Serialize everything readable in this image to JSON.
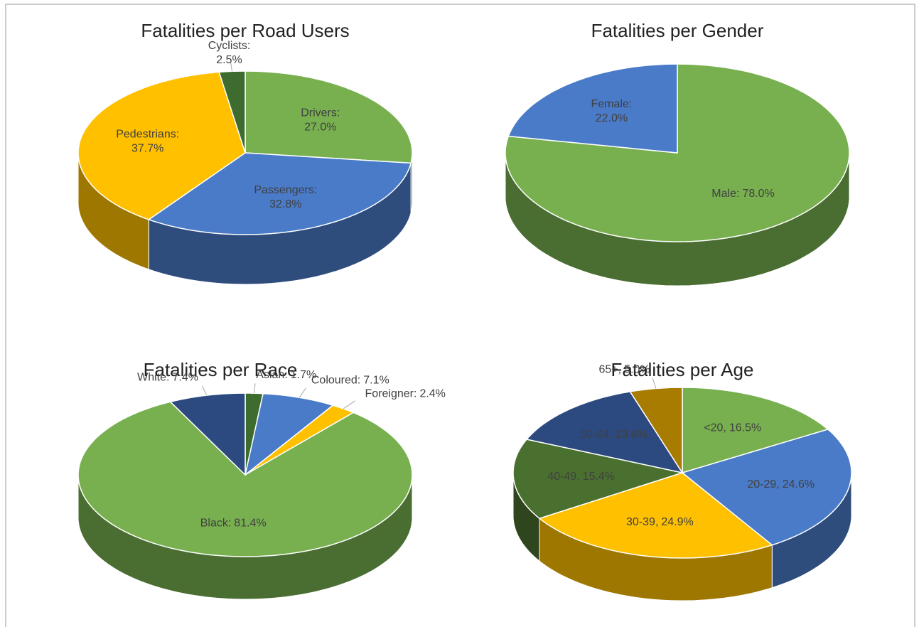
{
  "chart_data": [
    {
      "type": "pie",
      "title": "Fatalities per Road Users",
      "categories": [
        "Drivers:",
        "Passengers:",
        "Pedestrians:",
        "Cyclists:"
      ],
      "values": [
        27.0,
        32.8,
        37.7,
        2.5
      ],
      "value_labels": [
        "27.0%",
        "32.8%",
        "37.7%",
        "2.5%"
      ],
      "colors": [
        "#78b050",
        "#4a7bc8",
        "#ffc000",
        "#3e6b2e"
      ]
    },
    {
      "type": "pie",
      "title": "Fatalities per Gender",
      "categories": [
        "Male:",
        "Female:"
      ],
      "values": [
        78.0,
        22.0
      ],
      "value_labels": [
        "78.0%",
        "22.0%"
      ],
      "colors": [
        "#78b050",
        "#4a7bc8"
      ]
    },
    {
      "type": "pie",
      "title": "Fatalities per Race",
      "categories": [
        "Asian:",
        "Coloured:",
        "Foreigner:",
        "Black:",
        "White:"
      ],
      "values": [
        1.7,
        7.1,
        2.4,
        81.4,
        7.4
      ],
      "value_labels": [
        "1.7%",
        "7.1%",
        "2.4%",
        "81.4%",
        "7.4%"
      ],
      "colors": [
        "#3e6b2e",
        "#4a7bc8",
        "#ffc000",
        "#78b050",
        "#2c4a80"
      ]
    },
    {
      "type": "pie",
      "title": "Fatalities per Age",
      "categories": [
        "<20,",
        "20-29,",
        "30-39,",
        "40-49,",
        "50-64,",
        "65+,"
      ],
      "values": [
        16.5,
        24.6,
        24.9,
        15.4,
        13.6,
        5.0
      ],
      "value_labels": [
        "16.5%",
        "24.6%",
        "24.9%",
        "15.4%",
        "13.6%",
        "5.0%"
      ],
      "colors": [
        "#78b050",
        "#4a7bc8",
        "#ffc000",
        "#4a7030",
        "#2c4a80",
        "#a87c00"
      ]
    }
  ]
}
